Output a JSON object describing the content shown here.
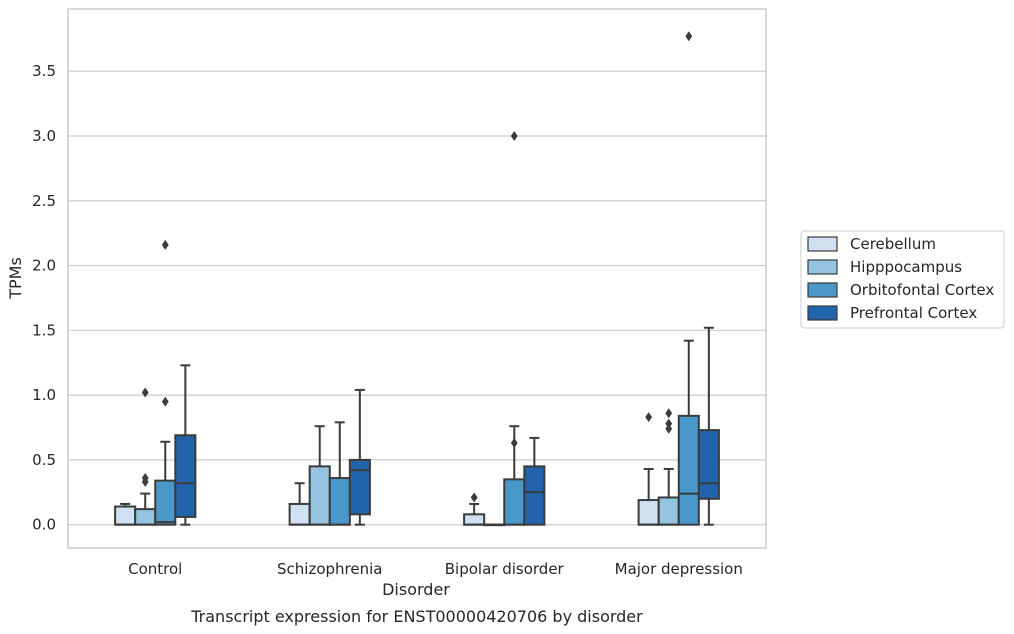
{
  "chart_data": {
    "type": "box",
    "title": "",
    "xlabel": "Disorder",
    "ylabel": "TPMs",
    "caption": "Transcript expression for ENST00000420706 by disorder",
    "ylim": [
      -0.18,
      3.98
    ],
    "yticks": [
      "0.0",
      "0.5",
      "1.0",
      "1.5",
      "2.0",
      "2.5",
      "3.0",
      "3.5"
    ],
    "grid": true,
    "legend_position": "right",
    "categories": [
      "Control",
      "Schizophrenia",
      "Bipolar disorder",
      "Major depression"
    ],
    "series": [
      {
        "name": "Cerebellum",
        "color": "#d0e1f2",
        "boxes": [
          {
            "q1": 0.0,
            "median": 0.0,
            "q3": 0.14,
            "whisker_low": 0.0,
            "whisker_high": 0.16,
            "outliers": []
          },
          {
            "q1": 0.0,
            "median": 0.0,
            "q3": 0.16,
            "whisker_low": 0.0,
            "whisker_high": 0.32,
            "outliers": []
          },
          {
            "q1": 0.0,
            "median": 0.0,
            "q3": 0.08,
            "whisker_low": 0.0,
            "whisker_high": 0.16,
            "outliers": [
              0.21
            ]
          },
          {
            "q1": 0.0,
            "median": 0.0,
            "q3": 0.19,
            "whisker_low": 0.0,
            "whisker_high": 0.43,
            "outliers": [
              0.83
            ]
          }
        ]
      },
      {
        "name": "Hipppocampus",
        "color": "#94c4df",
        "boxes": [
          {
            "q1": 0.0,
            "median": 0.0,
            "q3": 0.12,
            "whisker_low": 0.0,
            "whisker_high": 0.24,
            "outliers": [
              0.33,
              0.36,
              1.02
            ]
          },
          {
            "q1": 0.0,
            "median": 0.0,
            "q3": 0.45,
            "whisker_low": 0.0,
            "whisker_high": 0.76,
            "outliers": []
          },
          {
            "q1": 0.0,
            "median": 0.0,
            "q3": 0.0,
            "whisker_low": 0.0,
            "whisker_high": 0.0,
            "outliers": []
          },
          {
            "q1": 0.0,
            "median": 0.0,
            "q3": 0.21,
            "whisker_low": 0.0,
            "whisker_high": 0.43,
            "outliers": [
              0.74,
              0.78,
              0.86
            ]
          }
        ]
      },
      {
        "name": "Orbitofontal Cortex",
        "color": "#4a98c9",
        "boxes": [
          {
            "q1": 0.0,
            "median": 0.02,
            "q3": 0.34,
            "whisker_low": 0.0,
            "whisker_high": 0.64,
            "outliers": [
              0.95,
              2.16
            ]
          },
          {
            "q1": 0.0,
            "median": 0.0,
            "q3": 0.36,
            "whisker_low": 0.0,
            "whisker_high": 0.79,
            "outliers": []
          },
          {
            "q1": 0.0,
            "median": 0.0,
            "q3": 0.35,
            "whisker_low": 0.0,
            "whisker_high": 0.76,
            "outliers": [
              0.63,
              3.0
            ]
          },
          {
            "q1": 0.0,
            "median": 0.24,
            "q3": 0.84,
            "whisker_low": 0.0,
            "whisker_high": 1.42,
            "outliers": [
              3.77
            ]
          }
        ]
      },
      {
        "name": "Prefrontal Cortex",
        "color": "#2164ab",
        "boxes": [
          {
            "q1": 0.06,
            "median": 0.32,
            "q3": 0.69,
            "whisker_low": 0.0,
            "whisker_high": 1.23,
            "outliers": []
          },
          {
            "q1": 0.08,
            "median": 0.42,
            "q3": 0.5,
            "whisker_low": 0.0,
            "whisker_high": 1.04,
            "outliers": []
          },
          {
            "q1": 0.0,
            "median": 0.25,
            "q3": 0.45,
            "whisker_low": 0.0,
            "whisker_high": 0.67,
            "outliers": []
          },
          {
            "q1": 0.2,
            "median": 0.32,
            "q3": 0.73,
            "whisker_low": 0.0,
            "whisker_high": 1.52,
            "outliers": []
          }
        ]
      }
    ]
  },
  "colors": {
    "grid": "#cccccc",
    "frame": "#cccccc",
    "box_edge": "#3b3b3b",
    "legend_frame": "#cccccc"
  }
}
